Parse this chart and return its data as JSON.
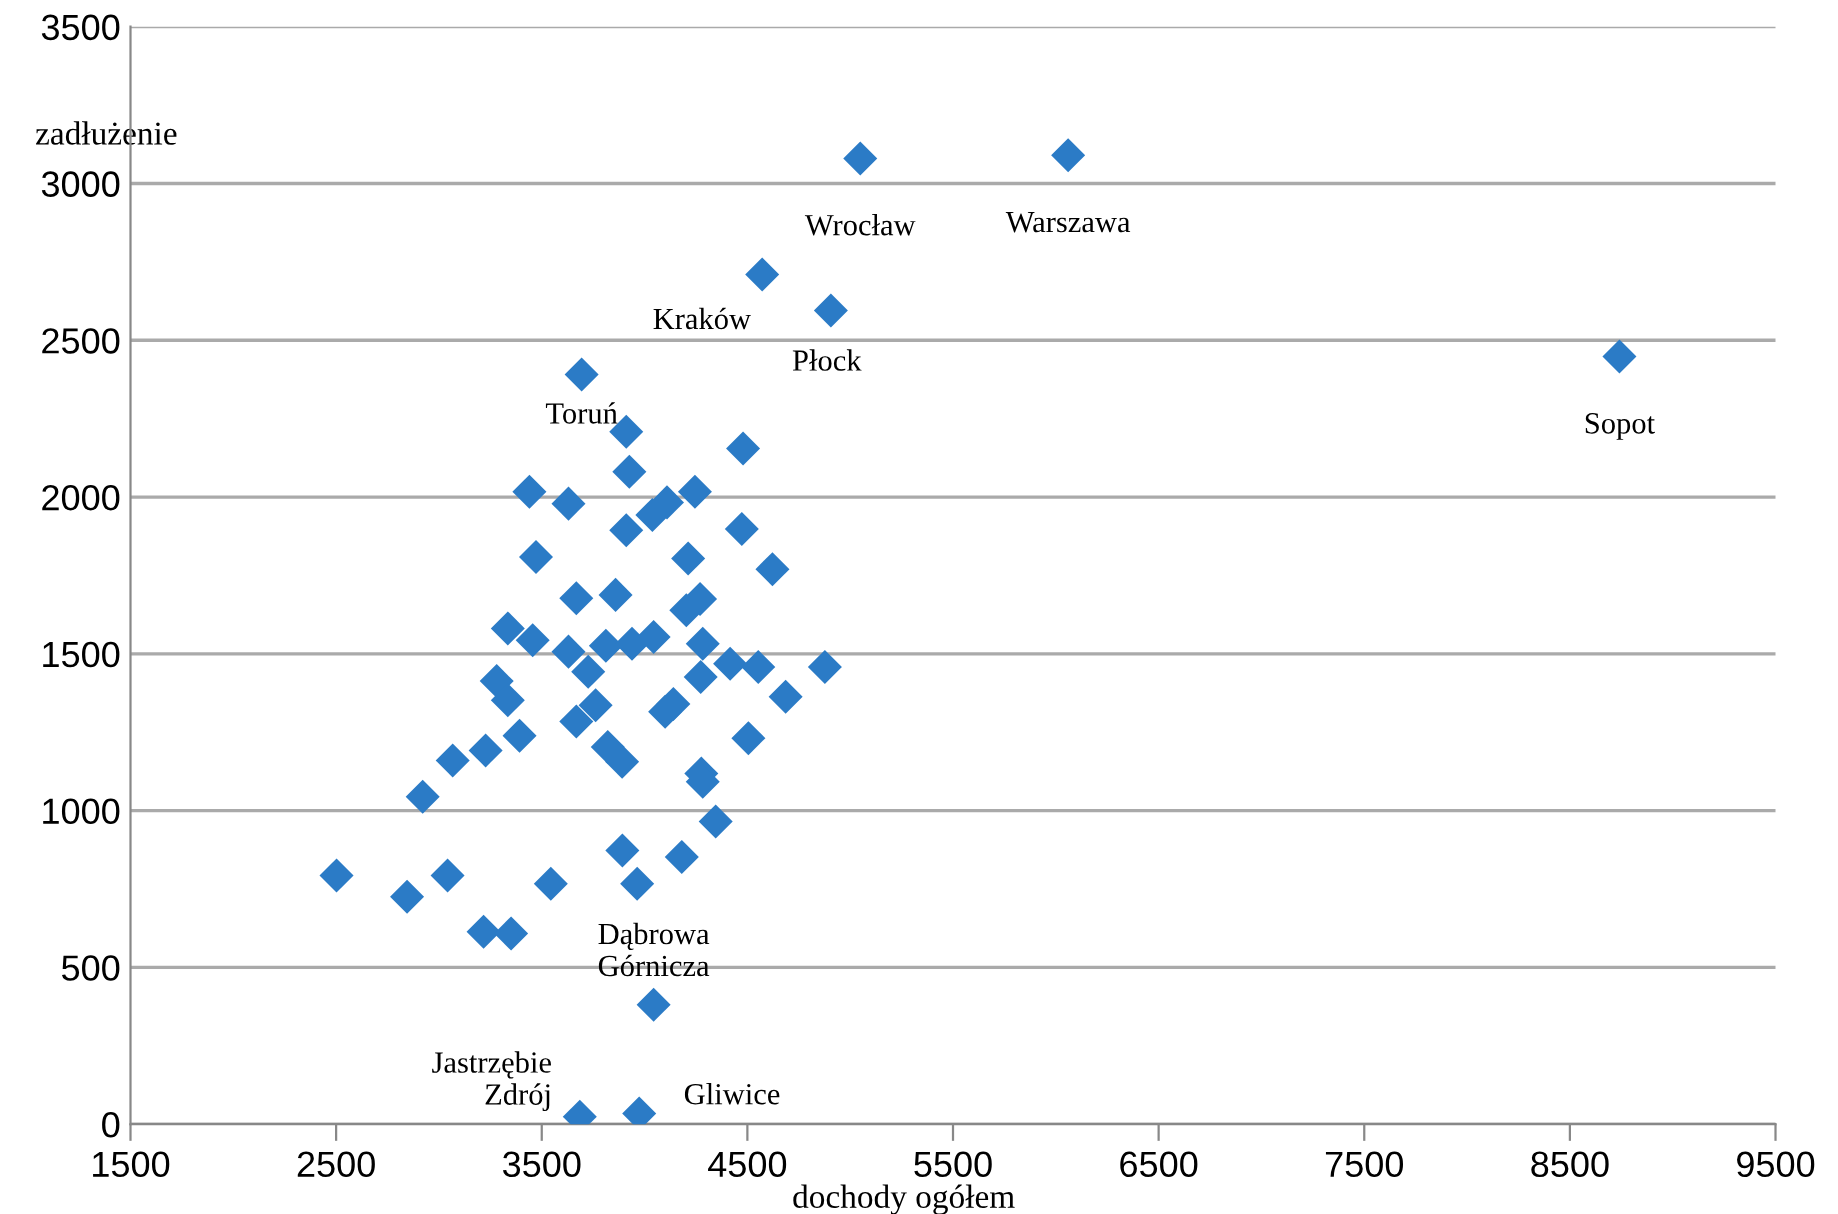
{
  "chart_data": {
    "type": "scatter",
    "xlabel": "dochody ogółem",
    "ylabel": "zadłużenie",
    "x": [
      6060,
      5049,
      4572,
      4906,
      8741,
      3694,
      3911,
      4479,
      3926,
      3440,
      3630,
      4245,
      4109,
      4038,
      3911,
      4473,
      3472,
      4212,
      4622,
      3668,
      3859,
      4203,
      4270,
      3335,
      3456,
      3630,
      3726,
      3812,
      3939,
      4044,
      4283,
      4416,
      4553,
      4877,
      4273,
      4686,
      3281,
      3335,
      3392,
      3762,
      3668,
      4100,
      4140,
      4505,
      3821,
      3891,
      4276,
      4283,
      3227,
      3067,
      2921,
      4346,
      2502,
      2845,
      3042,
      3544,
      3892,
      3964,
      4181,
      3217,
      3351,
      4044,
      3685,
      3974
    ],
    "series": [
      {
        "color": "#2b7bc6",
        "values": [
          3090,
          3080,
          2710,
          2595,
          2448,
          2391,
          2208,
          2155,
          2081,
          2017,
          1979,
          2017,
          1983,
          1943,
          1894,
          1898,
          1809,
          1804,
          1770,
          1677,
          1688,
          1639,
          1675,
          1581,
          1543,
          1507,
          1443,
          1526,
          1532,
          1554,
          1532,
          1468,
          1458,
          1458,
          1426,
          1363,
          1413,
          1352,
          1239,
          1336,
          1284,
          1315,
          1340,
          1231,
          1203,
          1156,
          1118,
          1092,
          1192,
          1160,
          1044,
          965,
          793,
          725,
          793,
          767,
          873,
          767,
          852,
          614,
          608,
          381,
          24,
          34
        ]
      }
    ],
    "marker": "diamond",
    "xlim": [
      1500,
      9500
    ],
    "ylim": [
      0,
      3500
    ],
    "xticks": [
      1500,
      2500,
      3500,
      4500,
      5500,
      6500,
      7500,
      8500,
      9500
    ],
    "yticks": [
      0,
      500,
      1000,
      1500,
      2000,
      2500,
      3000,
      3500
    ],
    "grid": "y",
    "annotations": [
      {
        "text": "Warszawa",
        "x": 6060,
        "y": 3090
      },
      {
        "text": "Wrocław",
        "x": 5049,
        "y": 3080
      },
      {
        "text": "Kraków",
        "x": 4572,
        "y": 2710
      },
      {
        "text": "Płock",
        "x": 4906,
        "y": 2595
      },
      {
        "text": "Sopot",
        "x": 8741,
        "y": 2448
      },
      {
        "text": "Toruń",
        "x": 3694,
        "y": 2391
      },
      {
        "text": "Dąbrowa\nGórnicza",
        "x": 4044,
        "y": 381
      },
      {
        "text": "Jastrzębie\nZdrój",
        "x": 3685,
        "y": 24
      },
      {
        "text": "Gliwice",
        "x": 3974,
        "y": 34
      }
    ]
  }
}
